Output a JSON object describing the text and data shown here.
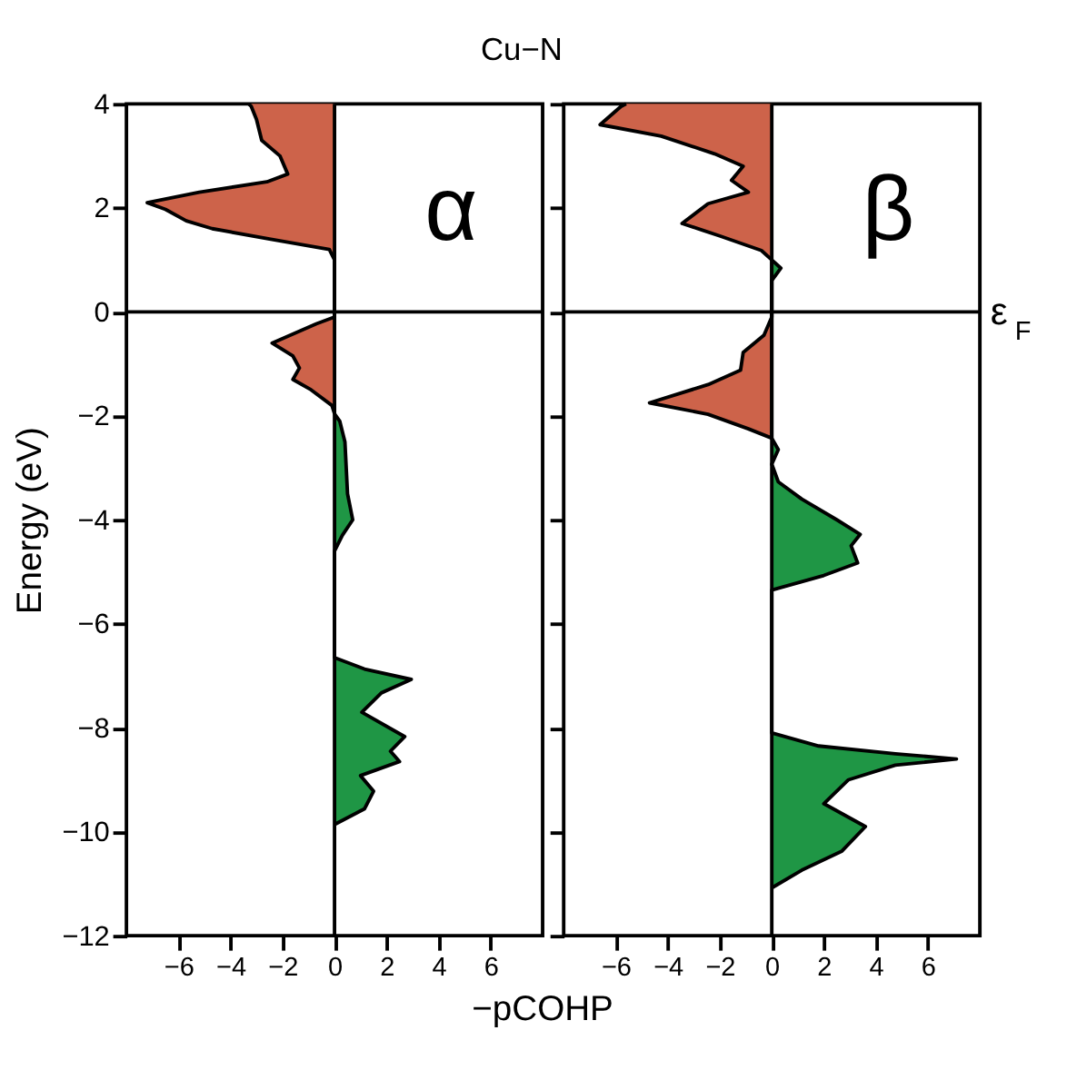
{
  "chart_data": [
    {
      "type": "area",
      "orientation": "horizontal",
      "title": "Cu−N",
      "xlabel": "−pCOHP",
      "ylabel": "Energy (eV)",
      "xlim": [
        -8,
        8
      ],
      "xticks": [
        -6,
        -4,
        -2,
        0,
        2,
        4,
        6
      ],
      "ylim": [
        -12,
        4
      ],
      "yticks": [
        -12,
        -10,
        -8,
        -6,
        -4,
        -2,
        0,
        2,
        4
      ],
      "annotations": [
        "α"
      ],
      "ref_lines": [
        {
          "axis": "x",
          "value": 0
        },
        {
          "axis": "y",
          "value": 0
        }
      ],
      "series": [
        {
          "color": "#cd634a",
          "x": [
            4.0,
            3.95,
            3.7,
            3.3,
            3.0,
            2.65,
            2.5,
            2.3,
            2.1,
            1.97,
            1.75,
            1.6,
            1.4,
            1.2,
            1.0,
            0.0,
            -0.1,
            -0.23,
            -0.6,
            -0.85,
            -1.08,
            -1.3,
            -1.5,
            -1.8,
            -1.96
          ],
          "values": [
            -3.3,
            -3.2,
            -3.0,
            -2.8,
            -2.1,
            -1.8,
            -2.6,
            -5.2,
            -7.2,
            -6.5,
            -5.7,
            -4.7,
            -2.5,
            -0.2,
            0,
            0,
            0,
            -0.7,
            -2.4,
            -1.6,
            -1.35,
            -1.6,
            -0.9,
            -0.1,
            0
          ]
        },
        {
          "color": "#1f9645",
          "x": [
            -1.96,
            -2.1,
            -2.5,
            -3.0,
            -3.5,
            -4.0,
            -4.3,
            -4.6,
            -6.65,
            -6.87,
            -7.07,
            -7.33,
            -7.7,
            -8.17,
            -8.45,
            -8.65,
            -8.92,
            -9.22,
            -9.56,
            -9.86
          ],
          "values": [
            0,
            0.2,
            0.4,
            0.45,
            0.5,
            0.7,
            0.3,
            0,
            0,
            1.15,
            2.95,
            1.8,
            1.05,
            2.7,
            2.15,
            2.5,
            1.0,
            1.5,
            1.15,
            0
          ]
        }
      ]
    },
    {
      "type": "area",
      "orientation": "horizontal",
      "xlim": [
        -8,
        8
      ],
      "xticks": [
        -6,
        -4,
        -2,
        0,
        2,
        4,
        6
      ],
      "ylim": [
        -12,
        4
      ],
      "yticks": [
        -12,
        -10,
        -8,
        -6,
        -4,
        -2,
        0,
        2,
        4
      ],
      "tick_labels": "x",
      "annotations": [
        "β"
      ],
      "ref_lines": [
        {
          "axis": "x",
          "value": 0
        },
        {
          "axis": "y",
          "value": 0,
          "label": "ε$_{F}$"
        }
      ],
      "series": [
        {
          "color": "#cd634a",
          "x": [
            4.0,
            3.95,
            3.6,
            3.38,
            3.04,
            2.8,
            2.53,
            2.3,
            2.08,
            1.7,
            1.46,
            1.18,
            1.0,
            0,
            -0.1,
            -0.45,
            -0.78,
            -1.12,
            -1.4,
            -1.75,
            -1.97,
            -2.25,
            -2.43
          ],
          "values": [
            -5.6,
            -5.8,
            -6.6,
            -4.25,
            -2.2,
            -1.1,
            -1.55,
            -0.9,
            -2.45,
            -3.45,
            -2.0,
            -0.4,
            0,
            0,
            0,
            -0.3,
            -1.1,
            -1.2,
            -2.45,
            -4.7,
            -2.45,
            -0.9,
            0
          ]
        },
        {
          "color": "#1f9645",
          "x": [
            1.0,
            0.84,
            0.6,
            -2.43,
            -2.65,
            -2.93,
            -3.27,
            -3.6,
            -4.0,
            -4.28,
            -4.5,
            -4.83,
            -5.07,
            -5.35,
            -8.1,
            -8.35,
            -8.5,
            -8.6,
            -8.72,
            -9.0,
            -9.46,
            -9.9,
            -10.37,
            -10.74,
            -11.08
          ],
          "values": [
            0,
            0.35,
            0,
            0,
            0.25,
            0,
            0.25,
            1.15,
            2.5,
            3.4,
            3.05,
            3.3,
            2.0,
            0,
            0,
            1.8,
            4.75,
            7.1,
            4.75,
            2.95,
            2.0,
            3.6,
            2.7,
            1.15,
            0
          ]
        }
      ]
    }
  ]
}
